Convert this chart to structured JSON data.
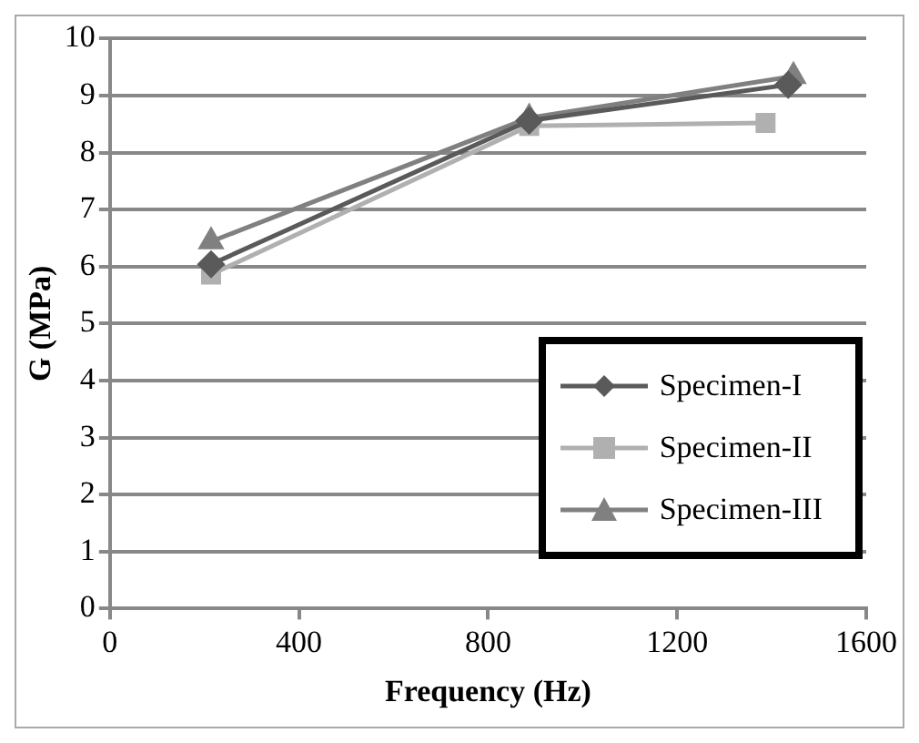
{
  "chart_data": {
    "type": "line",
    "xlabel": "Frequency (Hz)",
    "ylabel": "G (MPa)",
    "xlim": [
      0,
      1600
    ],
    "xticks": [
      0,
      400,
      800,
      1200,
      1600
    ],
    "ylim": [
      0,
      10
    ],
    "yticks": [
      0,
      1,
      2,
      3,
      4,
      5,
      6,
      7,
      8,
      9,
      10
    ],
    "grid": "y",
    "legend": "bottom right",
    "series": [
      {
        "name": "Specimen-I",
        "color": "#5a5a5a",
        "marker": "diamond",
        "x": [
          214,
          887,
          1435
        ],
        "values": [
          6.04,
          8.56,
          9.19
        ]
      },
      {
        "name": "Specimen-II",
        "color": "#b0b0b0",
        "marker": "square",
        "x": [
          214,
          887,
          1387
        ],
        "values": [
          5.86,
          8.47,
          8.52
        ]
      },
      {
        "name": "Specimen-III",
        "color": "#808080",
        "marker": "triangle",
        "x": [
          214,
          887,
          1446
        ],
        "values": [
          6.44,
          8.61,
          9.34
        ]
      }
    ]
  }
}
